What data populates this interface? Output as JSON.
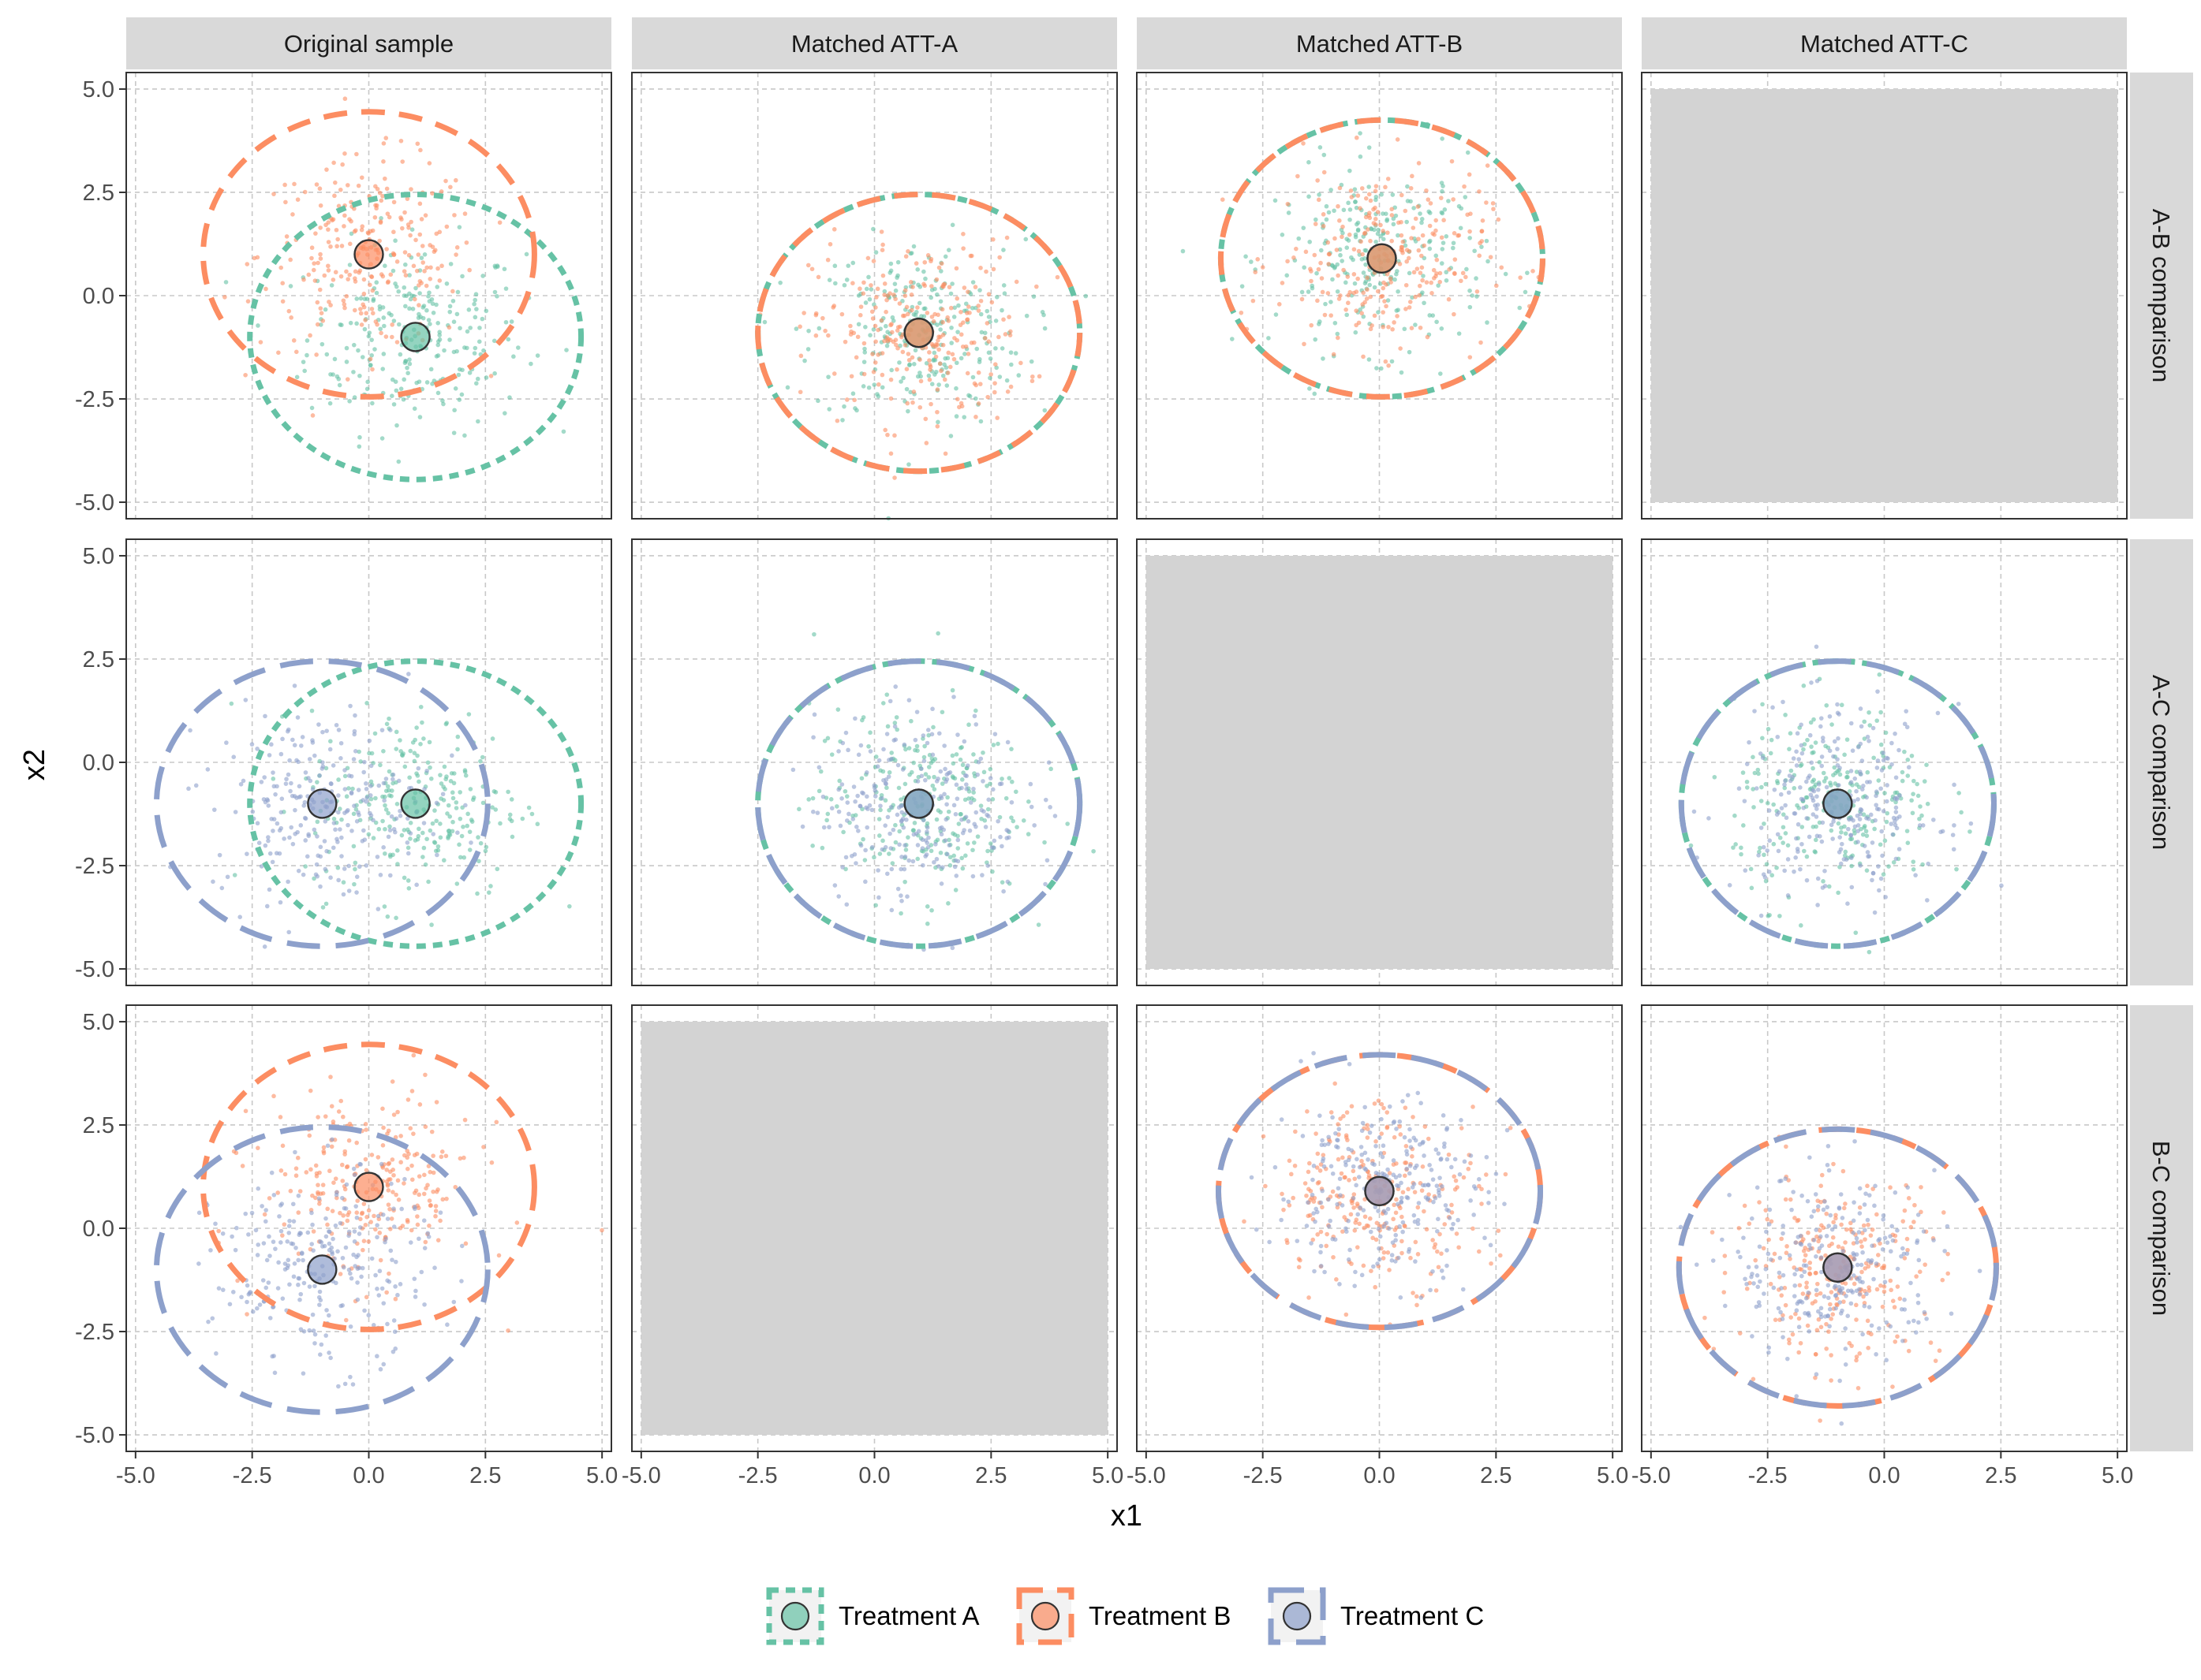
{
  "chart_data": {
    "type": "scatter",
    "facet_columns": [
      "Original sample",
      "Matched ATT-A",
      "Matched ATT-B",
      "Matched ATT-C"
    ],
    "facet_rows": [
      "A-B comparison",
      "A-C comparison",
      "B-C comparison"
    ],
    "xlabel": "x1",
    "ylabel": "x2",
    "xlim": [
      -5.2,
      5.2
    ],
    "ylim": [
      -5.4,
      5.4
    ],
    "x_ticks": [
      -5.0,
      -2.5,
      0.0,
      2.5,
      5.0
    ],
    "y_ticks": [
      -5.0,
      -2.5,
      0.0,
      2.5,
      5.0
    ],
    "x_tick_labels": [
      "-5.0",
      "-2.5",
      "0.0",
      "2.5",
      "5.0"
    ],
    "y_tick_labels": [
      "-5.0",
      "-2.5",
      "0.0",
      "2.5",
      "5.0"
    ],
    "grid": true,
    "legend_position": "bottom",
    "series": [
      {
        "name": "Treatment A",
        "color": "#66C2A5",
        "mean": [
          1.0,
          -1.0
        ],
        "radius_x": 3.5,
        "radius_y": 3.45
      },
      {
        "name": "Treatment B",
        "color": "#FC8D62",
        "mean": [
          0.0,
          1.0
        ],
        "radius_x": 3.5,
        "radius_y": 3.45
      },
      {
        "name": "Treatment C",
        "color": "#8DA0CB",
        "mean": [
          -1.0,
          -1.0
        ],
        "radius_x": 3.5,
        "radius_y": 3.45
      }
    ],
    "panels": [
      {
        "row": 0,
        "col": 0,
        "empty": false,
        "groups": [
          {
            "series": "Treatment A",
            "mean": [
              1.0,
              -1.0
            ],
            "rx": 3.55,
            "ry": 3.45,
            "dash": "dotted"
          },
          {
            "series": "Treatment B",
            "mean": [
              0.0,
              1.0
            ],
            "rx": 3.55,
            "ry": 3.45,
            "dash": "dashed"
          }
        ]
      },
      {
        "row": 0,
        "col": 1,
        "empty": false,
        "groups": [
          {
            "series": "Treatment A",
            "mean": [
              0.95,
              -0.9
            ],
            "rx": 3.45,
            "ry": 3.35,
            "dash": "dotted"
          },
          {
            "series": "Treatment B",
            "mean": [
              0.95,
              -0.9
            ],
            "rx": 3.45,
            "ry": 3.35,
            "dash": "dashed"
          }
        ]
      },
      {
        "row": 0,
        "col": 2,
        "empty": false,
        "groups": [
          {
            "series": "Treatment A",
            "mean": [
              0.05,
              0.9
            ],
            "rx": 3.45,
            "ry": 3.35,
            "dash": "dotted"
          },
          {
            "series": "Treatment B",
            "mean": [
              0.05,
              0.9
            ],
            "rx": 3.45,
            "ry": 3.35,
            "dash": "dashed"
          }
        ]
      },
      {
        "row": 0,
        "col": 3,
        "empty": true,
        "groups": []
      },
      {
        "row": 1,
        "col": 0,
        "empty": false,
        "groups": [
          {
            "series": "Treatment A",
            "mean": [
              1.0,
              -1.0
            ],
            "rx": 3.55,
            "ry": 3.45,
            "dash": "dotted"
          },
          {
            "series": "Treatment C",
            "mean": [
              -1.0,
              -1.0
            ],
            "rx": 3.55,
            "ry": 3.45,
            "dash": "longdash"
          }
        ]
      },
      {
        "row": 1,
        "col": 1,
        "empty": false,
        "groups": [
          {
            "series": "Treatment A",
            "mean": [
              0.95,
              -1.0
            ],
            "rx": 3.45,
            "ry": 3.45,
            "dash": "dotted"
          },
          {
            "series": "Treatment C",
            "mean": [
              0.95,
              -1.0
            ],
            "rx": 3.45,
            "ry": 3.45,
            "dash": "longdash"
          }
        ]
      },
      {
        "row": 1,
        "col": 2,
        "empty": true,
        "groups": []
      },
      {
        "row": 1,
        "col": 3,
        "empty": false,
        "groups": [
          {
            "series": "Treatment A",
            "mean": [
              -1.0,
              -1.0
            ],
            "rx": 3.35,
            "ry": 3.45,
            "dash": "dotted"
          },
          {
            "series": "Treatment C",
            "mean": [
              -1.0,
              -1.0
            ],
            "rx": 3.35,
            "ry": 3.45,
            "dash": "longdash"
          }
        ]
      },
      {
        "row": 2,
        "col": 0,
        "empty": false,
        "groups": [
          {
            "series": "Treatment B",
            "mean": [
              0.0,
              1.0
            ],
            "rx": 3.55,
            "ry": 3.45,
            "dash": "dashed"
          },
          {
            "series": "Treatment C",
            "mean": [
              -1.0,
              -1.0
            ],
            "rx": 3.55,
            "ry": 3.45,
            "dash": "longdash"
          }
        ]
      },
      {
        "row": 2,
        "col": 1,
        "empty": true,
        "groups": []
      },
      {
        "row": 2,
        "col": 2,
        "empty": false,
        "groups": [
          {
            "series": "Treatment B",
            "mean": [
              0.0,
              0.9
            ],
            "rx": 3.45,
            "ry": 3.3,
            "dash": "dashed"
          },
          {
            "series": "Treatment C",
            "mean": [
              0.0,
              0.9
            ],
            "rx": 3.45,
            "ry": 3.3,
            "dash": "longdash"
          }
        ]
      },
      {
        "row": 2,
        "col": 3,
        "empty": false,
        "groups": [
          {
            "series": "Treatment B",
            "mean": [
              -1.0,
              -0.95
            ],
            "rx": 3.4,
            "ry": 3.35,
            "dash": "dashed"
          },
          {
            "series": "Treatment C",
            "mean": [
              -1.0,
              -0.95
            ],
            "rx": 3.4,
            "ry": 3.35,
            "dash": "longdash"
          }
        ]
      }
    ],
    "points_per_group": 260,
    "point_spread_sd": 1.15
  }
}
